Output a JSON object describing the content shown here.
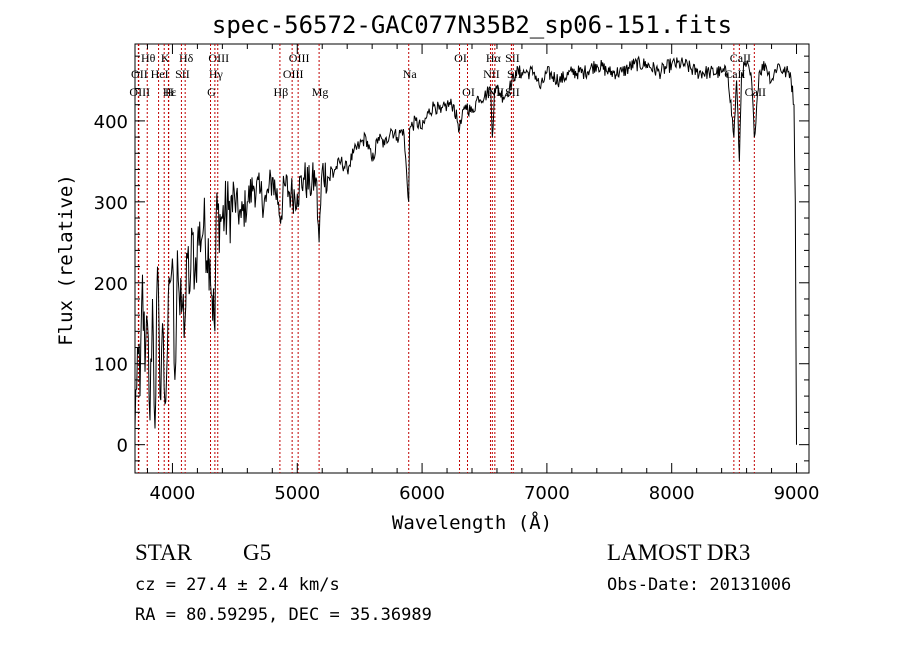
{
  "chart_data": {
    "type": "line",
    "title": "spec-56572-GAC077N35B2_sp06-151.fits",
    "xlabel": "Wavelength (Å)",
    "ylabel": "Flux (relative)",
    "xlim": [
      3700,
      9100
    ],
    "ylim": [
      -35,
      495
    ],
    "xticks": [
      4000,
      5000,
      6000,
      7000,
      8000,
      9000
    ],
    "xtick_labels": [
      "4000",
      "5000",
      "6000",
      "7000",
      "8000",
      "9000"
    ],
    "yticks": [
      0,
      100,
      200,
      300,
      400
    ],
    "ytick_labels": [
      "0",
      "100",
      "200",
      "300",
      "400"
    ],
    "series": [
      {
        "name": "spectrum",
        "x": [
          3700,
          3720,
          3740,
          3760,
          3780,
          3800,
          3820,
          3840,
          3860,
          3880,
          3900,
          3920,
          3940,
          3960,
          3980,
          4000,
          4020,
          4040,
          4060,
          4080,
          4100,
          4120,
          4140,
          4160,
          4180,
          4200,
          4250,
          4300,
          4340,
          4350,
          4400,
          4450,
          4500,
          4550,
          4600,
          4650,
          4700,
          4750,
          4800,
          4850,
          4861,
          4900,
          4950,
          5000,
          5050,
          5100,
          5150,
          5175,
          5200,
          5250,
          5300,
          5350,
          5400,
          5450,
          5500,
          5550,
          5600,
          5650,
          5700,
          5750,
          5800,
          5850,
          5893,
          5900,
          5950,
          6000,
          6050,
          6100,
          6150,
          6200,
          6250,
          6300,
          6350,
          6400,
          6450,
          6500,
          6550,
          6563,
          6580,
          6600,
          6650,
          6700,
          6750,
          6800,
          6850,
          6900,
          6950,
          7000,
          7100,
          7200,
          7300,
          7400,
          7500,
          7600,
          7700,
          7800,
          7900,
          8000,
          8100,
          8200,
          8300,
          8400,
          8450,
          8498,
          8520,
          8542,
          8560,
          8600,
          8640,
          8662,
          8700,
          8750,
          8800,
          8850,
          8900,
          8950,
          8980,
          8990,
          9000
        ],
        "values": [
          20,
          120,
          60,
          210,
          90,
          150,
          30,
          180,
          20,
          220,
          60,
          150,
          50,
          120,
          200,
          230,
          80,
          240,
          160,
          170,
          150,
          230,
          190,
          260,
          210,
          250,
          270,
          230,
          140,
          280,
          280,
          290,
          300,
          280,
          300,
          320,
          310,
          300,
          330,
          300,
          280,
          320,
          310,
          310,
          330,
          320,
          330,
          250,
          340,
          330,
          340,
          350,
          340,
          360,
          370,
          380,
          350,
          380,
          370,
          390,
          380,
          390,
          300,
          390,
          400,
          390,
          410,
          420,
          410,
          420,
          420,
          390,
          420,
          410,
          430,
          430,
          440,
          380,
          440,
          440,
          430,
          440,
          460,
          460,
          460,
          460,
          440,
          460,
          450,
          460,
          460,
          470,
          460,
          460,
          470,
          470,
          460,
          470,
          470,
          460,
          460,
          460,
          460,
          380,
          450,
          350,
          460,
          470,
          450,
          380,
          460,
          470,
          450,
          470,
          460,
          460,
          420,
          300,
          0
        ]
      }
    ],
    "lines": [
      {
        "label": "Hθ",
        "x": 3798,
        "row": 1
      },
      {
        "label": "K",
        "x": 3934,
        "row": 1
      },
      {
        "label": "Hδ",
        "x": 4102,
        "row": 1
      },
      {
        "label": "OIII",
        "x": 4363,
        "row": 1
      },
      {
        "label": "OIII",
        "x": 5007,
        "row": 1
      },
      {
        "label": "OI",
        "x": 6300,
        "row": 1
      },
      {
        "label": "Hα",
        "x": 6563,
        "row": 1
      },
      {
        "label": "SII",
        "x": 6716,
        "row": 1
      },
      {
        "label": "CaII",
        "x": 8542,
        "row": 1
      },
      {
        "label": "OII",
        "x": 3727,
        "row": 2
      },
      {
        "label": "HeI",
        "x": 3889,
        "row": 2
      },
      {
        "label": "SII",
        "x": 4072,
        "row": 2
      },
      {
        "label": "Hγ",
        "x": 4340,
        "row": 2
      },
      {
        "label": "OIII",
        "x": 4959,
        "row": 2
      },
      {
        "label": "Na",
        "x": 5893,
        "row": 2
      },
      {
        "label": "NII",
        "x": 6548,
        "row": 2
      },
      {
        "label": "SII",
        "x": 6731,
        "row": 2
      },
      {
        "label": "CaII",
        "x": 8498,
        "row": 2
      },
      {
        "label": "OIII",
        "x": 3730,
        "row": 3
      },
      {
        "label": "Hε",
        "x": 3970,
        "row": 3
      },
      {
        "label": "H",
        "x": 3968,
        "row": 3
      },
      {
        "label": "G",
        "x": 4305,
        "row": 3
      },
      {
        "label": "Hβ",
        "x": 4861,
        "row": 3
      },
      {
        "label": "Mg",
        "x": 5175,
        "row": 3
      },
      {
        "label": "OI",
        "x": 6364,
        "row": 3
      },
      {
        "label": "NII",
        "x": 6583,
        "row": 3
      },
      {
        "label": "SII",
        "x": 6716,
        "row": 3
      },
      {
        "label": "CaII",
        "x": 8662,
        "row": 3
      }
    ]
  },
  "info": {
    "class": "STAR",
    "subclass": "G5",
    "survey": "LAMOST DR3",
    "cz": "cz = 27.4 ± 2.4 km/s",
    "obs_date": "Obs-Date: 20131006",
    "radec": "RA =  80.59295, DEC =  35.36989"
  }
}
